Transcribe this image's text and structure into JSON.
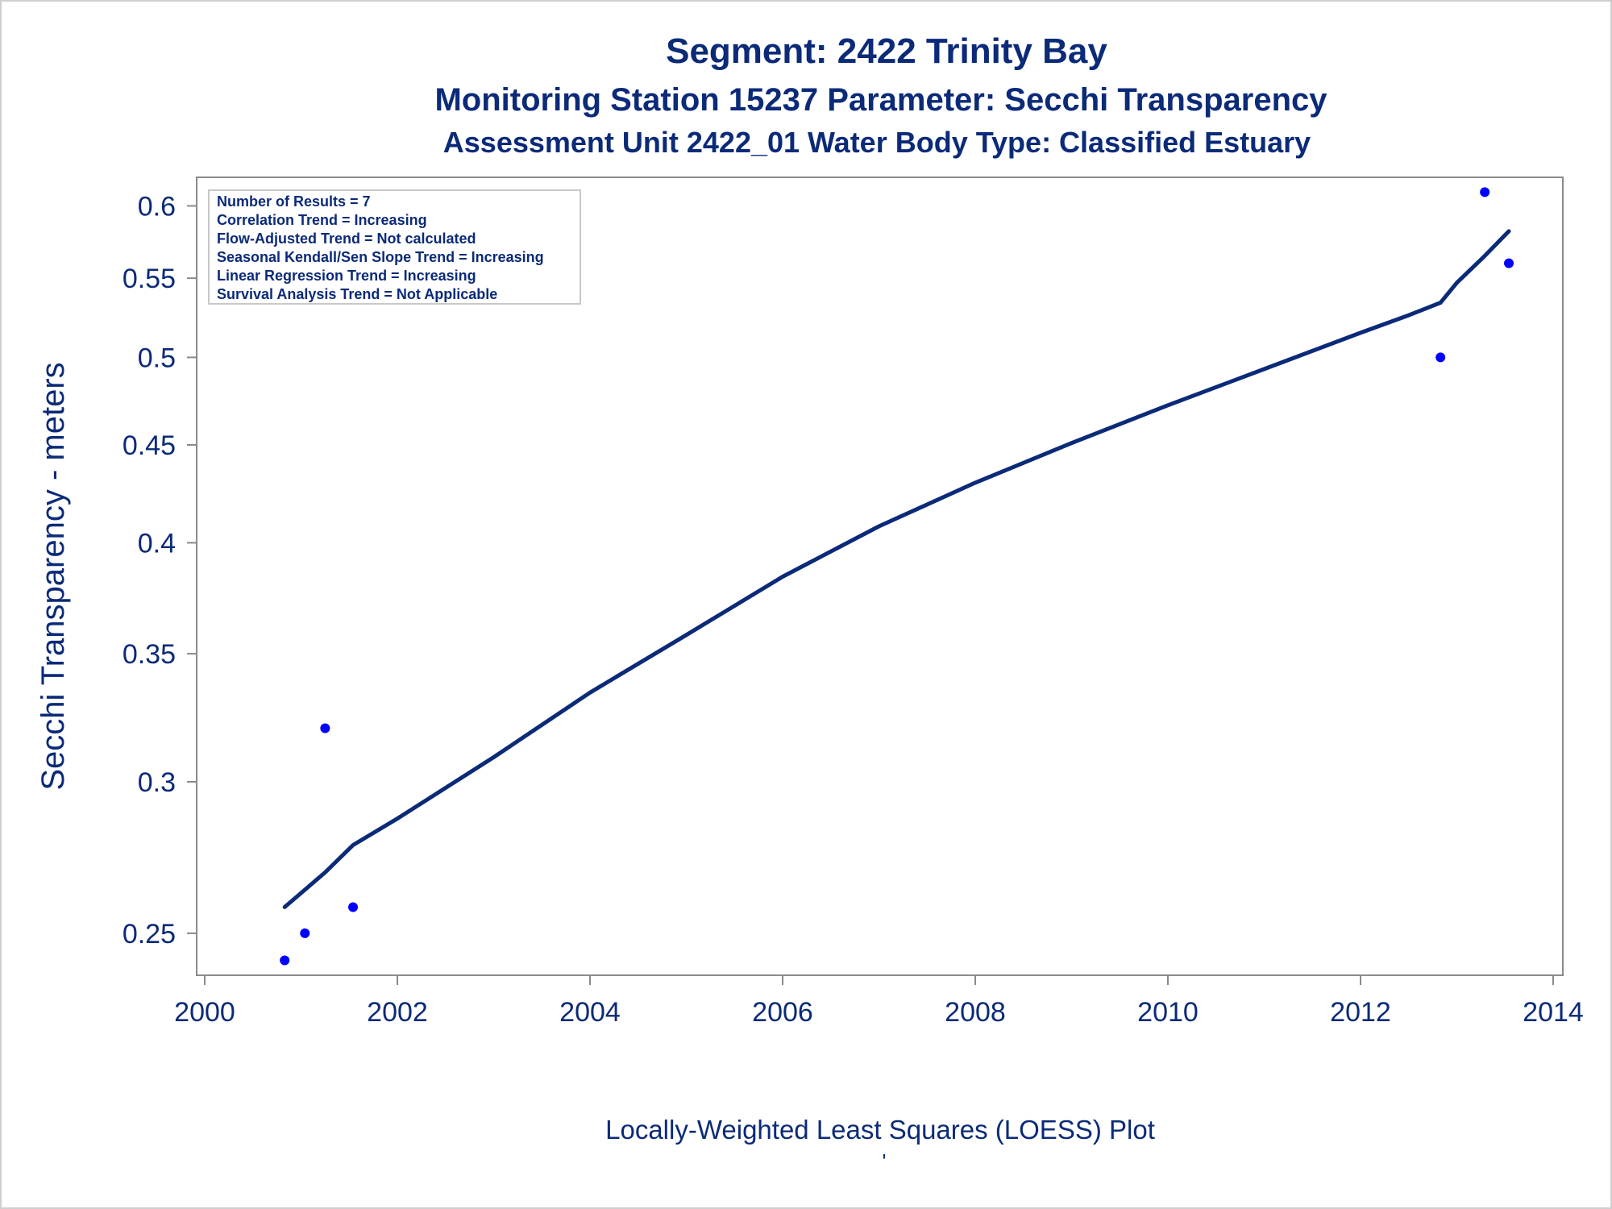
{
  "titles": [
    "Segment: 2422  Trinity Bay",
    "Monitoring Station 15237 Parameter: Secchi Transparency",
    "Assessment Unit 2422_01   Water Body Type: Classified Estuary"
  ],
  "stats_box": [
    "Number of Results = 7",
    "Correlation Trend = Increasing",
    "Flow-Adjusted Trend = Not calculated",
    "Seasonal Kendall/Sen Slope Trend = Increasing",
    "Linear Regression Trend = Increasing",
    "Survival Analysis Trend = Not Applicable"
  ],
  "footer": {
    "tick_mark": "'"
  },
  "chart_data": {
    "type": "scatter",
    "title": "Segment: 2422  Trinity Bay",
    "subtitle": "Monitoring Station 15237 Parameter: Secchi Transparency",
    "xlabel": "Locally-Weighted Least Squares (LOESS) Plot",
    "ylabel": "Secchi Transparency - meters",
    "y_scale": "log",
    "xlim": [
      2000,
      2014
    ],
    "ylim": [
      0.24,
      0.615
    ],
    "x_ticks": [
      2000,
      2002,
      2004,
      2006,
      2008,
      2010,
      2012,
      2014
    ],
    "y_ticks": [
      0.25,
      0.3,
      0.35,
      0.4,
      0.45,
      0.5,
      0.55,
      0.6
    ],
    "y_tick_labels": [
      "0.25",
      "0.3",
      "0.35",
      "0.4",
      "0.45",
      "0.5",
      "0.55",
      "0.6"
    ],
    "grid": false,
    "legend": "none",
    "series": [
      {
        "type": "scatter",
        "x": [
          2000.83,
          2001.04,
          2001.25,
          2001.54,
          2012.83,
          2013.29,
          2013.54
        ],
        "y": [
          0.242,
          0.25,
          0.32,
          0.258,
          0.5,
          0.61,
          0.56
        ],
        "color": "#0000ff"
      },
      {
        "type": "line",
        "x": [
          2000.83,
          2001.25,
          2001.54,
          2002.0,
          2003.0,
          2004.0,
          2005.0,
          2006.0,
          2007.0,
          2008.0,
          2009.0,
          2010.0,
          2011.0,
          2012.0,
          2012.5,
          2012.83,
          2013.0,
          2013.29,
          2013.54
        ],
        "y": [
          0.258,
          0.269,
          0.278,
          0.287,
          0.309,
          0.334,
          0.358,
          0.384,
          0.408,
          0.43,
          0.451,
          0.472,
          0.493,
          0.515,
          0.526,
          0.534,
          0.547,
          0.565,
          0.582
        ],
        "color": "#0b2a78"
      }
    ]
  }
}
